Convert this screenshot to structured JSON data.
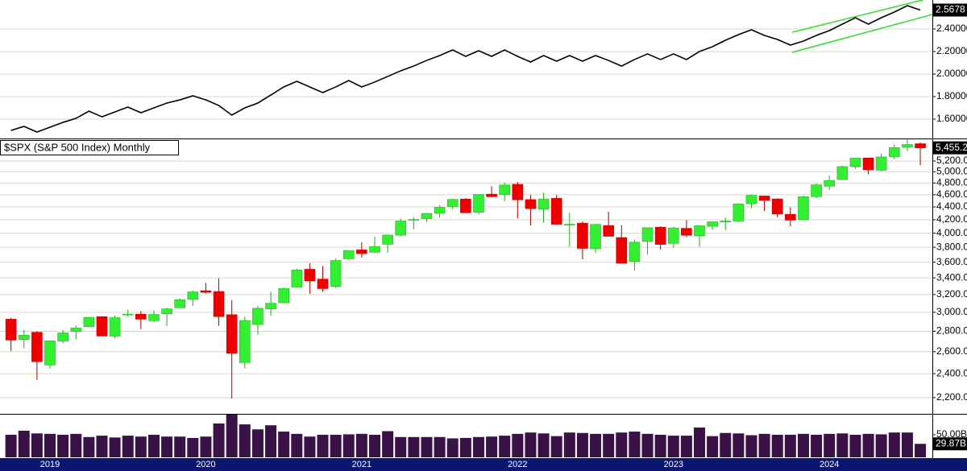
{
  "chart_data": [
    {
      "type": "line",
      "values": [
        1.5,
        1.536,
        1.486,
        1.529,
        1.571,
        1.607,
        1.671,
        1.621,
        1.664,
        1.707,
        1.657,
        1.7,
        1.743,
        1.771,
        1.807,
        1.771,
        1.721,
        1.636,
        1.7,
        1.743,
        1.814,
        1.886,
        1.936,
        1.886,
        1.836,
        1.886,
        1.943,
        1.886,
        1.929,
        1.979,
        2.029,
        2.071,
        2.121,
        2.164,
        2.214,
        2.157,
        2.207,
        2.157,
        2.214,
        2.157,
        2.107,
        2.164,
        2.114,
        2.164,
        2.114,
        2.164,
        2.121,
        2.071,
        2.129,
        2.179,
        2.129,
        2.179,
        2.129,
        2.2,
        2.243,
        2.3,
        2.35,
        2.393,
        2.343,
        2.307,
        2.257,
        2.293,
        2.343,
        2.386,
        2.443,
        2.5,
        2.443,
        2.5,
        2.55,
        2.607,
        2.5678
      ],
      "color": "#000000",
      "ylim": [
        1.4286,
        2.6571
      ],
      "yticks": [
        {
          "value": 1.6,
          "label": "1.60000"
        },
        {
          "value": 1.8,
          "label": "1.80000"
        },
        {
          "value": 2.0,
          "label": "2.00000"
        },
        {
          "value": 2.2,
          "label": "2.20000"
        },
        {
          "value": 2.4,
          "label": "2.40000"
        }
      ],
      "grid": true,
      "last_label": "2.5678"
    },
    {
      "type": "candlestick",
      "title": "$SPX (S&P 500 Index) Monthly",
      "open": [
        2926,
        2717,
        2790,
        2477,
        2703,
        2798,
        2848,
        2953,
        2751,
        2972,
        2980,
        2910,
        2984,
        3050,
        3144,
        3245,
        3236,
        2974,
        2499,
        2870,
        3038,
        3106,
        3289,
        3508,
        3385,
        3296,
        3645,
        3764,
        3732,
        3842,
        3971,
        4191,
        4217,
        4300,
        4407,
        4529,
        4317,
        4610,
        4602,
        4778,
        4520,
        4364,
        4540,
        4131,
        4149,
        3781,
        4113,
        3937,
        3610,
        3882,
        4087,
        3854,
        4071,
        3963,
        4102,
        4166,
        4181,
        4451,
        4579,
        4530,
        4284,
        4202,
        4568,
        4745,
        4862,
        5098,
        5257,
        5029,
        5283,
        5471,
        5537
      ],
      "high": [
        2940,
        2815,
        2800,
        2708,
        2814,
        2860,
        2950,
        2954,
        2964,
        3028,
        3014,
        3022,
        3050,
        3154,
        3248,
        3338,
        3394,
        3136,
        2954,
        3068,
        3233,
        3280,
        3514,
        3588,
        3550,
        3646,
        3760,
        3870,
        3950,
        3983,
        4218,
        4238,
        4302,
        4430,
        4537,
        4546,
        4608,
        4744,
        4808,
        4819,
        4595,
        4637,
        4593,
        4307,
        4178,
        4140,
        4325,
        4119,
        3905,
        4080,
        4101,
        4095,
        4195,
        4110,
        4170,
        4231,
        4448,
        4607,
        4584,
        4541,
        4393,
        4587,
        4794,
        4932,
        5111,
        5265,
        5264,
        5342,
        5524,
        5669,
        5566
      ],
      "low": [
        2604,
        2632,
        2347,
        2444,
        2681,
        2722,
        2848,
        2750,
        2729,
        2952,
        2822,
        2892,
        2855,
        3050,
        3070,
        3214,
        2855,
        2192,
        2447,
        2767,
        2966,
        3101,
        3284,
        3209,
        3233,
        3279,
        3633,
        3662,
        3725,
        3723,
        3955,
        4056,
        4164,
        4233,
        4367,
        4306,
        4279,
        4560,
        4495,
        4223,
        4115,
        4158,
        4124,
        3811,
        3637,
        3721,
        3955,
        3585,
        3492,
        3699,
        3765,
        3794,
        3943,
        3809,
        4049,
        4048,
        4166,
        4385,
        4336,
        4238,
        4104,
        4197,
        4547,
        4682,
        4854,
        5056,
        4954,
        5011,
        5234,
        5391,
        5119
      ],
      "close": [
        2712,
        2760,
        2507,
        2704,
        2784,
        2834,
        2946,
        2752,
        2942,
        2980,
        2926,
        2977,
        3038,
        3141,
        3231,
        3226,
        2954,
        2585,
        2912,
        3044,
        3100,
        3271,
        3500,
        3363,
        3270,
        3622,
        3756,
        3714,
        3811,
        3973,
        4181,
        4204,
        4298,
        4395,
        4523,
        4308,
        4605,
        4567,
        4766,
        4516,
        4374,
        4530,
        4132,
        4132,
        3785,
        4130,
        3955,
        3586,
        3872,
        4080,
        3840,
        4077,
        3970,
        4109,
        4169,
        4180,
        4450,
        4589,
        4508,
        4288,
        4194,
        4568,
        4770,
        4846,
        5096,
        5254,
        5036,
        5278,
        5460,
        5522,
        5455.2
      ],
      "up_color": "#33ee33",
      "down_color": "#ee0000",
      "log_scale": true,
      "ylim": [
        2074,
        5644
      ],
      "yticks": [
        {
          "value": 2200,
          "label": "2,200.0"
        },
        {
          "value": 2400,
          "label": "2,400.0"
        },
        {
          "value": 2600,
          "label": "2,600.0"
        },
        {
          "value": 2800,
          "label": "2,800.0"
        },
        {
          "value": 3000,
          "label": "3,000.0"
        },
        {
          "value": 3200,
          "label": "3,200.0"
        },
        {
          "value": 3400,
          "label": "3,400.0"
        },
        {
          "value": 3600,
          "label": "3,600.0"
        },
        {
          "value": 3800,
          "label": "3,800.0"
        },
        {
          "value": 4000,
          "label": "4,000.0"
        },
        {
          "value": 4200,
          "label": "4,200.0"
        },
        {
          "value": 4400,
          "label": "4,400.0"
        },
        {
          "value": 4600,
          "label": "4,600.0"
        },
        {
          "value": 4800,
          "label": "4,800.0"
        },
        {
          "value": 5000,
          "label": "5,000.0"
        },
        {
          "value": 5200,
          "label": "5,200.0"
        }
      ],
      "grid": true,
      "last_label": "5,455.2"
    },
    {
      "type": "bar",
      "categories": [
        null,
        null,
        null,
        "2019",
        null,
        null,
        null,
        null,
        null,
        null,
        null,
        null,
        null,
        null,
        null,
        "2020",
        null,
        null,
        null,
        null,
        null,
        null,
        null,
        null,
        null,
        null,
        null,
        "2021",
        null,
        null,
        null,
        null,
        null,
        null,
        null,
        null,
        null,
        null,
        null,
        "2022",
        null,
        null,
        null,
        null,
        null,
        null,
        null,
        null,
        null,
        null,
        null,
        "2023",
        null,
        null,
        null,
        null,
        null,
        null,
        null,
        null,
        null,
        null,
        null,
        "2024",
        null,
        null,
        null,
        null,
        null,
        null,
        null
      ],
      "values": [
        50,
        59,
        53,
        52,
        50,
        52,
        45,
        48,
        44,
        48,
        46,
        50,
        46,
        46,
        43,
        46,
        75,
        96,
        73,
        62,
        71,
        57,
        52,
        46,
        50,
        50,
        51,
        52,
        50,
        58,
        45,
        45,
        45,
        45,
        42,
        43,
        45,
        46,
        48,
        52,
        55,
        53,
        47,
        55,
        54,
        52,
        52,
        55,
        57,
        52,
        50,
        48,
        48,
        66,
        47,
        54,
        53,
        49,
        52,
        50,
        50,
        52,
        50,
        52,
        53,
        50,
        52,
        51,
        55,
        55,
        29.87
      ],
      "color": "#3a1248",
      "ylim": [
        0,
        96.4
      ],
      "yticks": [
        {
          "value": 50,
          "label": "50.00B"
        }
      ],
      "grid": false,
      "last_label": "29.87B"
    }
  ]
}
